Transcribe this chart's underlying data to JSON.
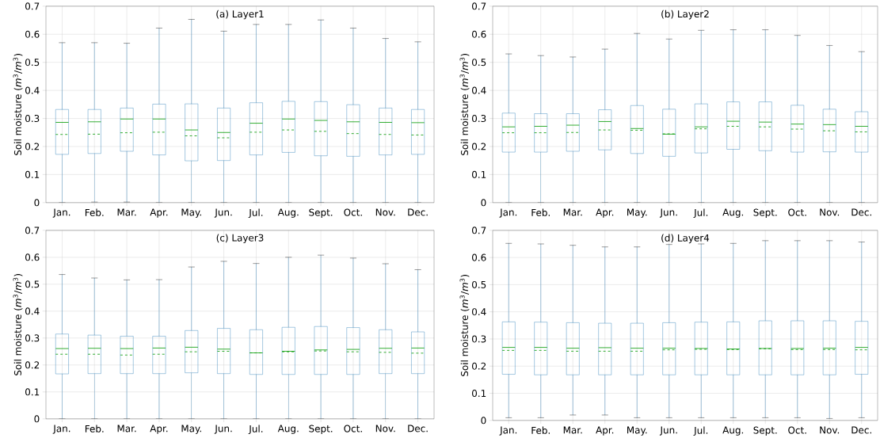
{
  "chart_data": [
    {
      "type": "box",
      "title": "(a) Layer1",
      "ylabel": "Soil moisture (*m*$^{3}$/*m*$^{3}$)",
      "categories": [
        "Jan.",
        "Feb.",
        "Mar.",
        "Apr.",
        "May.",
        "Jun.",
        "Jul.",
        "Aug.",
        "Sept.",
        "Oct.",
        "Nov.",
        "Dec."
      ],
      "color": "#1f77b4",
      "grid": true,
      "ylim": [
        0,
        0.7
      ],
      "yticks": [
        0,
        0.1,
        0.2,
        0.3,
        0.4,
        0.5,
        0.6,
        0.7
      ],
      "boxes": [
        {
          "low": 0,
          "q1": 0.172,
          "median": 0.286,
          "q3": 0.332,
          "high": 0.57,
          "mean": 0.243
        },
        {
          "low": 0.002,
          "q1": 0.175,
          "median": 0.288,
          "q3": 0.332,
          "high": 0.57,
          "mean": 0.244
        },
        {
          "low": 0.002,
          "q1": 0.183,
          "median": 0.298,
          "q3": 0.337,
          "high": 0.568,
          "mean": 0.249
        },
        {
          "low": 0,
          "q1": 0.17,
          "median": 0.298,
          "q3": 0.351,
          "high": 0.622,
          "mean": 0.251
        },
        {
          "low": 0,
          "q1": 0.149,
          "median": 0.259,
          "q3": 0.352,
          "high": 0.653,
          "mean": 0.238
        },
        {
          "low": 0,
          "q1": 0.15,
          "median": 0.25,
          "q3": 0.337,
          "high": 0.611,
          "mean": 0.231
        },
        {
          "low": 0,
          "q1": 0.17,
          "median": 0.283,
          "q3": 0.356,
          "high": 0.635,
          "mean": 0.251
        },
        {
          "low": 0,
          "q1": 0.179,
          "median": 0.298,
          "q3": 0.361,
          "high": 0.635,
          "mean": 0.259
        },
        {
          "low": 0,
          "q1": 0.167,
          "median": 0.293,
          "q3": 0.36,
          "high": 0.651,
          "mean": 0.254
        },
        {
          "low": 0,
          "q1": 0.165,
          "median": 0.288,
          "q3": 0.349,
          "high": 0.622,
          "mean": 0.246
        },
        {
          "low": 0,
          "q1": 0.17,
          "median": 0.286,
          "q3": 0.337,
          "high": 0.585,
          "mean": 0.243
        },
        {
          "low": 0,
          "q1": 0.172,
          "median": 0.285,
          "q3": 0.332,
          "high": 0.573,
          "mean": 0.241
        }
      ]
    },
    {
      "type": "box",
      "title": "(b) Layer2",
      "ylabel": "Soil moisture (*m*$^{3}$/*m*$^{3}$)",
      "categories": [
        "Jan.",
        "Feb.",
        "Mar.",
        "Apr.",
        "May.",
        "Jun.",
        "Jul.",
        "Aug.",
        "Sept.",
        "Oct.",
        "Nov.",
        "Dec."
      ],
      "color": "#1f77b4",
      "grid": true,
      "ylim": [
        0,
        0.7
      ],
      "yticks": [
        0,
        0.1,
        0.2,
        0.3,
        0.4,
        0.5,
        0.6,
        0.7
      ],
      "boxes": [
        {
          "low": 0,
          "q1": 0.18,
          "median": 0.27,
          "q3": 0.319,
          "high": 0.53,
          "mean": 0.249
        },
        {
          "low": 0,
          "q1": 0.18,
          "median": 0.272,
          "q3": 0.317,
          "high": 0.524,
          "mean": 0.249
        },
        {
          "low": 0,
          "q1": 0.183,
          "median": 0.276,
          "q3": 0.317,
          "high": 0.519,
          "mean": 0.25
        },
        {
          "low": 0,
          "q1": 0.188,
          "median": 0.289,
          "q3": 0.331,
          "high": 0.547,
          "mean": 0.259
        },
        {
          "low": 0,
          "q1": 0.175,
          "median": 0.264,
          "q3": 0.346,
          "high": 0.603,
          "mean": 0.258
        },
        {
          "low": 0,
          "q1": 0.165,
          "median": 0.244,
          "q3": 0.333,
          "high": 0.583,
          "mean": 0.245
        },
        {
          "low": 0,
          "q1": 0.177,
          "median": 0.27,
          "q3": 0.352,
          "high": 0.614,
          "mean": 0.263
        },
        {
          "low": 0,
          "q1": 0.19,
          "median": 0.29,
          "q3": 0.359,
          "high": 0.616,
          "mean": 0.272
        },
        {
          "low": 0,
          "q1": 0.185,
          "median": 0.287,
          "q3": 0.359,
          "high": 0.616,
          "mean": 0.27
        },
        {
          "low": 0,
          "q1": 0.18,
          "median": 0.28,
          "q3": 0.347,
          "high": 0.596,
          "mean": 0.262
        },
        {
          "low": 0,
          "q1": 0.181,
          "median": 0.278,
          "q3": 0.333,
          "high": 0.56,
          "mean": 0.256
        },
        {
          "low": 0,
          "q1": 0.18,
          "median": 0.272,
          "q3": 0.324,
          "high": 0.538,
          "mean": 0.252
        }
      ]
    },
    {
      "type": "box",
      "title": "(c) Layer3",
      "ylabel": "Soil moisture (*m*$^{3}$/*m*$^{3}$)",
      "categories": [
        "Jan.",
        "Feb.",
        "Mar.",
        "Apr.",
        "May.",
        "Jun.",
        "Jul.",
        "Aug.",
        "Sept.",
        "Oct.",
        "Nov.",
        "Dec."
      ],
      "color": "#1f77b4",
      "grid": true,
      "ylim": [
        0,
        0.7
      ],
      "yticks": [
        0,
        0.1,
        0.2,
        0.3,
        0.4,
        0.5,
        0.6,
        0.7
      ],
      "boxes": [
        {
          "low": 0,
          "q1": 0.167,
          "median": 0.261,
          "q3": 0.315,
          "high": 0.536,
          "mean": 0.24
        },
        {
          "low": 0,
          "q1": 0.168,
          "median": 0.262,
          "q3": 0.311,
          "high": 0.523,
          "mean": 0.24
        },
        {
          "low": 0,
          "q1": 0.168,
          "median": 0.261,
          "q3": 0.307,
          "high": 0.516,
          "mean": 0.237
        },
        {
          "low": 0,
          "q1": 0.168,
          "median": 0.263,
          "q3": 0.307,
          "high": 0.517,
          "mean": 0.24
        },
        {
          "low": 0,
          "q1": 0.171,
          "median": 0.266,
          "q3": 0.328,
          "high": 0.564,
          "mean": 0.249
        },
        {
          "low": 0,
          "q1": 0.168,
          "median": 0.259,
          "q3": 0.336,
          "high": 0.585,
          "mean": 0.251
        },
        {
          "low": 0,
          "q1": 0.165,
          "median": 0.245,
          "q3": 0.331,
          "high": 0.577,
          "mean": 0.245
        },
        {
          "low": 0,
          "q1": 0.165,
          "median": 0.251,
          "q3": 0.34,
          "high": 0.6,
          "mean": 0.249
        },
        {
          "low": 0,
          "q1": 0.165,
          "median": 0.256,
          "q3": 0.343,
          "high": 0.608,
          "mean": 0.252
        },
        {
          "low": 0,
          "q1": 0.165,
          "median": 0.258,
          "q3": 0.339,
          "high": 0.597,
          "mean": 0.249
        },
        {
          "low": 0,
          "q1": 0.168,
          "median": 0.262,
          "q3": 0.331,
          "high": 0.576,
          "mean": 0.247
        },
        {
          "low": 0,
          "q1": 0.168,
          "median": 0.263,
          "q3": 0.323,
          "high": 0.554,
          "mean": 0.244
        }
      ]
    },
    {
      "type": "box",
      "title": "(d) Layer4",
      "ylabel": "Soil moisture (*m*$^{3}$/*m*$^{3}$)",
      "categories": [
        "Jan.",
        "Feb.",
        "Mar.",
        "Apr.",
        "May.",
        "Jun.",
        "Jul.",
        "Aug.",
        "Sept.",
        "Oct.",
        "Nov.",
        "Dec."
      ],
      "color": "#1f77b4",
      "grid": true,
      "ylim": [
        0,
        0.7
      ],
      "yticks": [
        0,
        0.1,
        0.2,
        0.3,
        0.4,
        0.5,
        0.6,
        0.7
      ],
      "boxes": [
        {
          "low": 0.01,
          "q1": 0.17,
          "median": 0.269,
          "q3": 0.363,
          "high": 0.652,
          "mean": 0.258
        },
        {
          "low": 0.01,
          "q1": 0.168,
          "median": 0.269,
          "q3": 0.362,
          "high": 0.65,
          "mean": 0.258
        },
        {
          "low": 0.02,
          "q1": 0.168,
          "median": 0.266,
          "q3": 0.36,
          "high": 0.645,
          "mean": 0.255
        },
        {
          "low": 0.02,
          "q1": 0.168,
          "median": 0.268,
          "q3": 0.358,
          "high": 0.639,
          "mean": 0.255
        },
        {
          "low": 0.01,
          "q1": 0.168,
          "median": 0.266,
          "q3": 0.358,
          "high": 0.639,
          "mean": 0.255
        },
        {
          "low": 0.01,
          "q1": 0.168,
          "median": 0.266,
          "q3": 0.36,
          "high": 0.648,
          "mean": 0.26
        },
        {
          "low": 0.01,
          "q1": 0.168,
          "median": 0.265,
          "q3": 0.362,
          "high": 0.65,
          "mean": 0.262
        },
        {
          "low": 0.01,
          "q1": 0.168,
          "median": 0.263,
          "q3": 0.363,
          "high": 0.652,
          "mean": 0.261
        },
        {
          "low": 0.01,
          "q1": 0.168,
          "median": 0.265,
          "q3": 0.367,
          "high": 0.662,
          "mean": 0.264
        },
        {
          "low": 0.01,
          "q1": 0.168,
          "median": 0.265,
          "q3": 0.367,
          "high": 0.662,
          "mean": 0.261
        },
        {
          "low": 0.007,
          "q1": 0.168,
          "median": 0.266,
          "q3": 0.367,
          "high": 0.662,
          "mean": 0.261
        },
        {
          "low": 0.01,
          "q1": 0.17,
          "median": 0.269,
          "q3": 0.365,
          "high": 0.657,
          "mean": 0.26
        }
      ]
    }
  ]
}
